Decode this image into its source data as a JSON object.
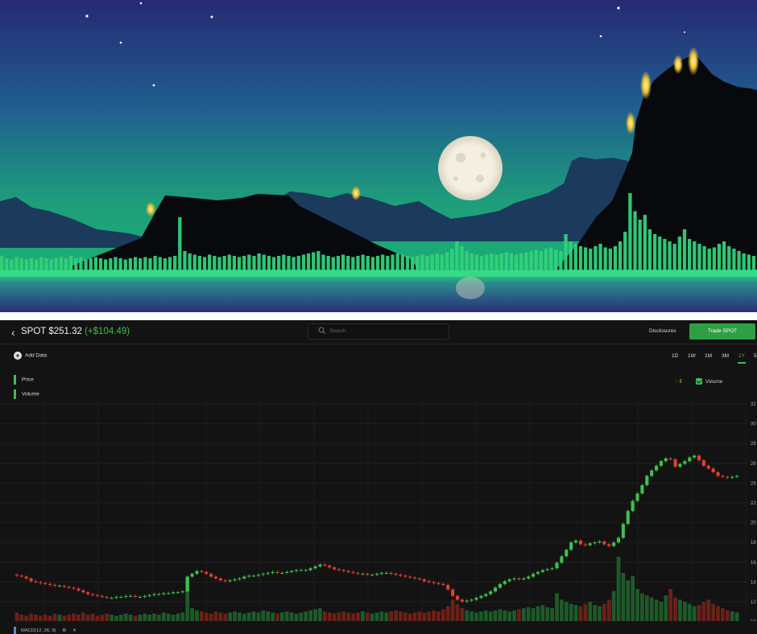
{
  "header": {
    "back_icon": "chevron-left-icon",
    "symbol": "SPOT",
    "price": "$251.32",
    "change": "(+$104.49)",
    "search_placeholder": "Search",
    "disclosures_label": "Disclosures",
    "trade_label": "Trade SPOT"
  },
  "toolbar": {
    "add_data_label": "Add Data",
    "ranges": [
      "1D",
      "1W",
      "1M",
      "3M",
      "1Y",
      "5"
    ],
    "active_range": "1Y"
  },
  "legend": {
    "items": [
      "Price",
      "Volume"
    ],
    "volume_toggle_label": "Volume",
    "volume_checked": true
  },
  "indicators": {
    "macd_label": "MACD(12, 26, 9)"
  },
  "colors": {
    "up": "#3fbf4f",
    "down": "#e0402e",
    "accent": "#2ea043"
  },
  "chart_data": {
    "type": "candlestick",
    "y_axis_ticks": [
      "32",
      "30",
      "28",
      "26",
      "24",
      "22",
      "20",
      "18",
      "16",
      "14",
      "12",
      "10"
    ],
    "ylim": [
      100,
      330
    ],
    "grid": true,
    "close": [
      144,
      143,
      141,
      138,
      137,
      136,
      135,
      134,
      133,
      133,
      132,
      131,
      130,
      128,
      126,
      124,
      123,
      122,
      121,
      120,
      120,
      121,
      121,
      122,
      122,
      121,
      121,
      122,
      123,
      124,
      124,
      125,
      125,
      126,
      126,
      127,
      143,
      146,
      149,
      148,
      146,
      143,
      141,
      139,
      138,
      139,
      140,
      141,
      143,
      144,
      144,
      145,
      146,
      147,
      148,
      147,
      147,
      148,
      149,
      150,
      150,
      150,
      152,
      154,
      156,
      155,
      153,
      151,
      150,
      149,
      148,
      147,
      146,
      146,
      145,
      145,
      146,
      147,
      147,
      146,
      145,
      144,
      143,
      142,
      141,
      140,
      138,
      137,
      136,
      135,
      134,
      129,
      122,
      118,
      116,
      117,
      118,
      120,
      122,
      124,
      127,
      131,
      135,
      138,
      140,
      141,
      140,
      141,
      143,
      146,
      148,
      150,
      151,
      152,
      158,
      165,
      172,
      180,
      182,
      178,
      177,
      179,
      180,
      181,
      178,
      176,
      180,
      185,
      200,
      214,
      225,
      233,
      242,
      252,
      258,
      263,
      268,
      271,
      270,
      262,
      265,
      268,
      272,
      274,
      269,
      263,
      260,
      256,
      252,
      251,
      250,
      251,
      252
    ],
    "volume": [
      8,
      6,
      5,
      7,
      6,
      5,
      6,
      5,
      7,
      6,
      5,
      6,
      7,
      6,
      8,
      6,
      7,
      5,
      6,
      7,
      6,
      5,
      6,
      7,
      6,
      5,
      6,
      7,
      6,
      7,
      6,
      8,
      7,
      6,
      7,
      8,
      40,
      12,
      10,
      9,
      8,
      7,
      9,
      8,
      7,
      8,
      9,
      8,
      7,
      8,
      9,
      8,
      10,
      9,
      8,
      7,
      8,
      9,
      8,
      7,
      8,
      9,
      10,
      11,
      12,
      9,
      8,
      7,
      8,
      9,
      8,
      7,
      8,
      9,
      8,
      7,
      8,
      9,
      8,
      9,
      10,
      9,
      8,
      7,
      8,
      9,
      8,
      9,
      10,
      9,
      11,
      14,
      20,
      16,
      12,
      10,
      9,
      8,
      9,
      10,
      9,
      10,
      11,
      10,
      9,
      10,
      11,
      12,
      13,
      12,
      14,
      15,
      13,
      12,
      26,
      20,
      18,
      16,
      15,
      14,
      16,
      18,
      15,
      14,
      16,
      20,
      28,
      60,
      45,
      38,
      42,
      30,
      26,
      24,
      22,
      20,
      18,
      24,
      30,
      22,
      20,
      18,
      16,
      14,
      15,
      18,
      20,
      16,
      14,
      12,
      10,
      9,
      8
    ]
  }
}
